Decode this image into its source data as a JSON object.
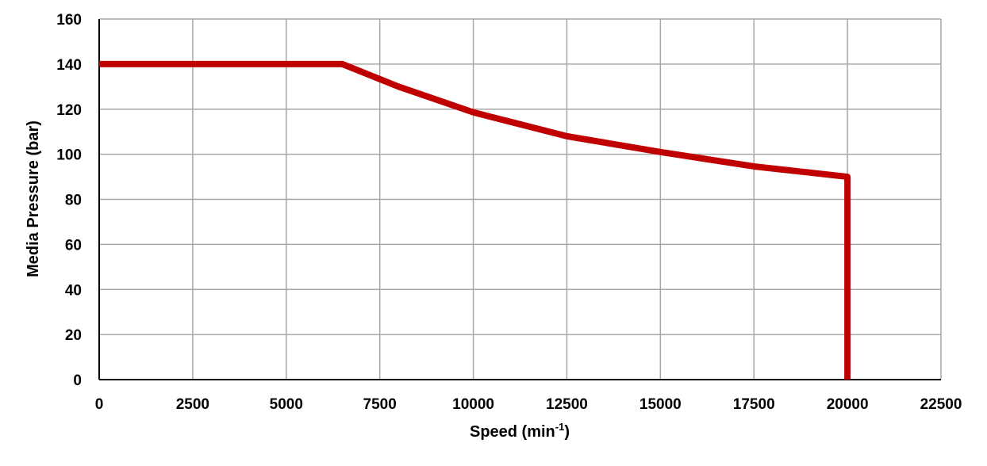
{
  "chart_data": {
    "type": "line",
    "title": "",
    "xlabel": "Speed (min",
    "xlabel_sup": "-1",
    "xlabel_end": ")",
    "ylabel": "Media Pressure (bar)",
    "xlim": [
      0,
      22500
    ],
    "ylim": [
      0,
      160
    ],
    "xticks": [
      0,
      2500,
      5000,
      7500,
      10000,
      12500,
      15000,
      17500,
      20000,
      22500
    ],
    "yticks": [
      0,
      20,
      40,
      60,
      80,
      100,
      120,
      140,
      160
    ],
    "grid": true,
    "legend": "none",
    "series": [
      {
        "color": "#c00000",
        "x": [
          0,
          6500,
          8000,
          10000,
          12500,
          15000,
          17500,
          20000,
          20000
        ],
        "y": [
          140,
          140,
          130,
          118.6,
          108,
          101,
          94.6,
          90,
          0
        ]
      }
    ]
  }
}
